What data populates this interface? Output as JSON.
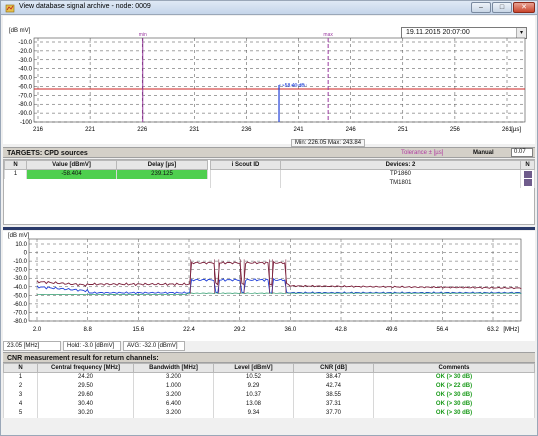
{
  "window": {
    "title": "View database signal archive - node: 0009",
    "controls": {
      "minimize": "–",
      "maximize": "□",
      "close": "✕"
    }
  },
  "top_chart": {
    "datetime": "19.11.2015  20:07:00",
    "datetime_arrow": "▾",
    "y_unit": "[dB mV]",
    "y_ticks": [
      "-10.0",
      "-20.0",
      "-30.0",
      "-40.0",
      "-50.0",
      "-60.0",
      "-70.0",
      "-80.0",
      "-90.0",
      "-100"
    ],
    "x_ticks": [
      "216",
      "221",
      "226",
      "231",
      "236",
      "241",
      "246",
      "251",
      "256",
      "261"
    ],
    "x_unit": "[µs]",
    "marker_min_label": "min",
    "marker_max_label": "max",
    "peak_label": "-58.40 dB",
    "min_max_readout": "Min: 226.05  Max: 243.84"
  },
  "targets": {
    "title": "TARGETS: CPD sources",
    "tolerance_label": "Tolerance ± [µs]",
    "manual_label": "Manual",
    "manual_value": "0.07",
    "columns": [
      "N",
      "Value [dBmV]",
      "Delay [µs]"
    ],
    "rows": [
      {
        "n": "1",
        "value": "-58.404",
        "delay": "239.125"
      }
    ],
    "scout_header": "i Scout ID",
    "devices_header": "Devices: 2",
    "n_header": "N",
    "devices": [
      {
        "name": "TP1860",
        "tag": "TV"
      },
      {
        "name": "TM1801",
        "tag": "TV"
      }
    ]
  },
  "spectrum_chart": {
    "y_unit": "[dB mV]",
    "y_ticks": [
      "10.0",
      "0",
      "-10.0",
      "-20.0",
      "-30.0",
      "-40.0",
      "-50.0",
      "-60.0",
      "-70.0",
      "-80.0"
    ],
    "x_ticks": [
      "2.0",
      "8.8",
      "15.6",
      "22.4",
      "29.2",
      "36.0",
      "42.8",
      "49.6",
      "56.4",
      "63.2"
    ],
    "x_unit": "[MHz]",
    "status": [
      "23.05 [MHz]",
      "Hold: -3.0 [dBmV]",
      "AVG: -32.0 [dBmV]"
    ]
  },
  "cnr": {
    "title": "CNR measurement result for return channels:",
    "columns": [
      "N",
      "Central frequency [MHz]",
      "Bandwidth [MHz]",
      "Level [dBmV]",
      "CNR [dB]",
      "Comments"
    ],
    "rows": [
      {
        "n": "1",
        "freq": "24.20",
        "bw": "3.200",
        "level": "10.52",
        "cnr": "38.47",
        "comment": "OK (> 30 dB)"
      },
      {
        "n": "2",
        "freq": "29.50",
        "bw": "1.000",
        "level": "9.29",
        "cnr": "42.74",
        "comment": "OK (> 22 dB)"
      },
      {
        "n": "3",
        "freq": "29.60",
        "bw": "3.200",
        "level": "10.37",
        "cnr": "38.55",
        "comment": "OK (> 30 dB)"
      },
      {
        "n": "4",
        "freq": "30.40",
        "bw": "6.400",
        "level": "13.08",
        "cnr": "37.31",
        "comment": "OK (> 30 dB)"
      },
      {
        "n": "5",
        "freq": "30.20",
        "bw": "3.200",
        "level": "9.34",
        "cnr": "37.70",
        "comment": "OK (> 30 dB)"
      }
    ]
  },
  "colors": {
    "hold_trace": "#7a1f3a",
    "avg_trace": "#1f3fd8",
    "floor_trace": "#2a9a6a",
    "limit_line": "#cc2222",
    "marker": "#9a3aa0",
    "ok": "#1a9a1a"
  }
}
